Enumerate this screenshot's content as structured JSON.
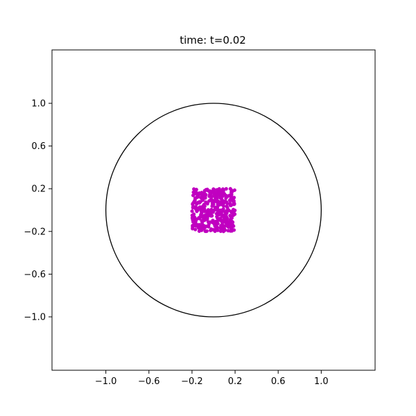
{
  "chart_data": {
    "type": "scatter",
    "title": "time: t=0.02",
    "xlabel": "",
    "ylabel": "",
    "xlim": [
      -1.5,
      1.5
    ],
    "ylim": [
      -1.5,
      1.5
    ],
    "xticks": [
      -1.0,
      -0.6,
      -0.2,
      0.2,
      0.6,
      1.0
    ],
    "yticks": [
      -1.0,
      -0.6,
      -0.2,
      0.2,
      0.6,
      1.0
    ],
    "xtick_labels": [
      "−1.0",
      "−0.6",
      "−0.2",
      "0.2",
      "0.6",
      "1.0"
    ],
    "ytick_labels": [
      "−1.0",
      "−0.6",
      "−0.2",
      "0.2",
      "0.6",
      "1.0"
    ],
    "grid": false,
    "aspect": "equal",
    "circle": {
      "center": [
        0,
        0
      ],
      "radius": 1.0,
      "color": "#000000"
    },
    "particles": {
      "color": "#c000c0",
      "x_range": [
        -0.2,
        0.2
      ],
      "y_range": [
        -0.2,
        0.2
      ],
      "count": 400
    }
  }
}
